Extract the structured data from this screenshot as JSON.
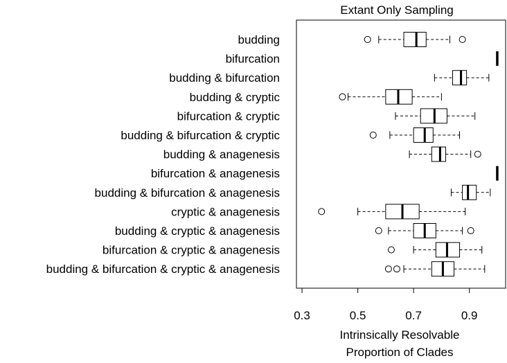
{
  "chart_data": {
    "type": "boxplot",
    "orientation": "horizontal",
    "title": "Extant Only Sampling",
    "xlabel": [
      "Intrinsically Resolvable",
      "Proportion of Clades"
    ],
    "xlim": [
      0.28,
      1.03
    ],
    "xticks": [
      0.3,
      0.5,
      0.7,
      0.9
    ],
    "xtick_labels": [
      "0.3",
      "0.5",
      "0.7",
      "0.9"
    ],
    "grid": false,
    "legend": "none",
    "categories": [
      "budding",
      "bifurcation",
      "budding & bifurcation",
      "budding & cryptic",
      "bifurcation & cryptic",
      "budding & bifurcation & cryptic",
      "budding & anagenesis",
      "bifurcation & anagenesis",
      "budding & bifurcation & anagenesis",
      "cryptic & anagenesis",
      "budding & cryptic & anagenesis",
      "bifurcation & cryptic & anagenesis",
      "budding & bifurcation & cryptic & anagenesis"
    ],
    "boxes": [
      {
        "whisker_low": 0.575,
        "q1": 0.665,
        "median": 0.71,
        "q3": 0.745,
        "whisker_high": 0.83,
        "outliers": [
          0.535,
          0.875
        ]
      },
      {
        "whisker_low": 1.0,
        "q1": 1.0,
        "median": 1.0,
        "q3": 1.0,
        "whisker_high": 1.0,
        "outliers": []
      },
      {
        "whisker_low": 0.775,
        "q1": 0.84,
        "median": 0.87,
        "q3": 0.89,
        "whisker_high": 0.97,
        "outliers": []
      },
      {
        "whisker_low": 0.465,
        "q1": 0.6,
        "median": 0.645,
        "q3": 0.695,
        "whisker_high": 0.8,
        "outliers": [
          0.445
        ]
      },
      {
        "whisker_low": 0.635,
        "q1": 0.725,
        "median": 0.775,
        "q3": 0.82,
        "whisker_high": 0.92,
        "outliers": []
      },
      {
        "whisker_low": 0.615,
        "q1": 0.7,
        "median": 0.74,
        "q3": 0.77,
        "whisker_high": 0.865,
        "outliers": [
          0.555
        ]
      },
      {
        "whisker_low": 0.685,
        "q1": 0.765,
        "median": 0.795,
        "q3": 0.815,
        "whisker_high": 0.905,
        "outliers": [
          0.93
        ]
      },
      {
        "whisker_low": 1.0,
        "q1": 1.0,
        "median": 1.0,
        "q3": 1.0,
        "whisker_high": 1.0,
        "outliers": []
      },
      {
        "whisker_low": 0.835,
        "q1": 0.875,
        "median": 0.895,
        "q3": 0.925,
        "whisker_high": 0.975,
        "outliers": []
      },
      {
        "whisker_low": 0.5,
        "q1": 0.6,
        "median": 0.66,
        "q3": 0.72,
        "whisker_high": 0.885,
        "outliers": [
          0.37
        ]
      },
      {
        "whisker_low": 0.61,
        "q1": 0.7,
        "median": 0.74,
        "q3": 0.78,
        "whisker_high": 0.875,
        "outliers": [
          0.575,
          0.905
        ]
      },
      {
        "whisker_low": 0.7,
        "q1": 0.78,
        "median": 0.82,
        "q3": 0.865,
        "whisker_high": 0.945,
        "outliers": [
          0.62
        ]
      },
      {
        "whisker_low": 0.665,
        "q1": 0.765,
        "median": 0.805,
        "q3": 0.845,
        "whisker_high": 0.955,
        "outliers": [
          0.61,
          0.64
        ]
      }
    ]
  }
}
